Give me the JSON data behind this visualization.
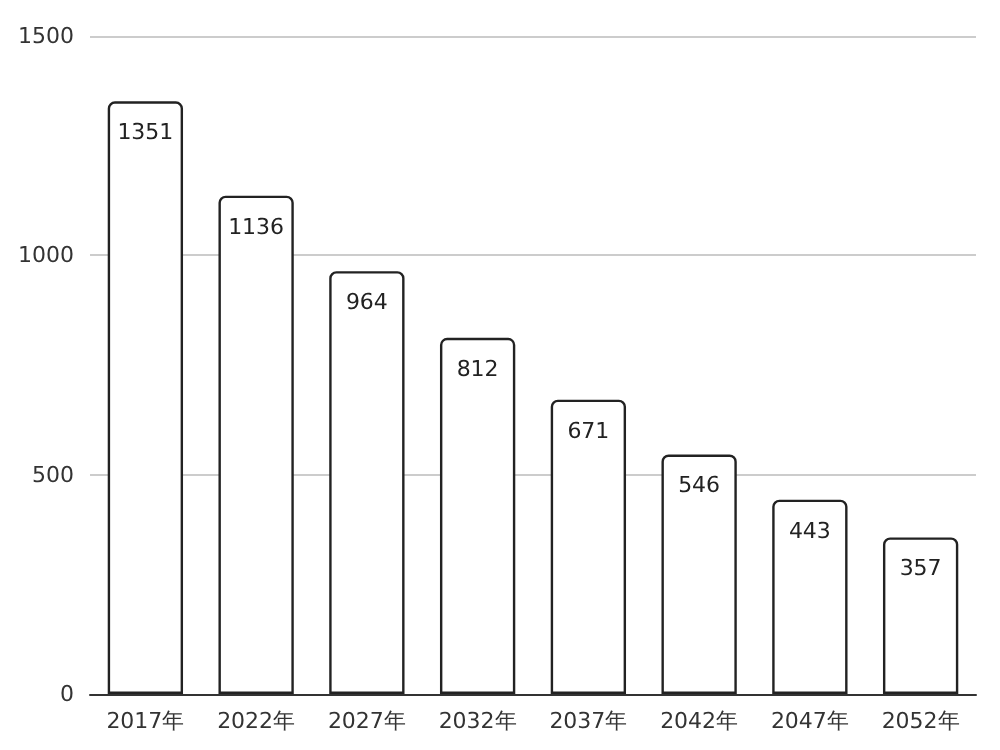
{
  "chart_data": {
    "type": "bar",
    "categories": [
      "2017年",
      "2022年",
      "2027年",
      "2032年",
      "2037年",
      "2042年",
      "2047年",
      "2052年"
    ],
    "values": [
      1351,
      1136,
      964,
      812,
      671,
      546,
      443,
      357
    ],
    "color": "#ffffff",
    "ylim": [
      0,
      1500
    ],
    "yticks": [
      0,
      500,
      1000,
      1500
    ],
    "grid": "y",
    "data_labels": true
  }
}
